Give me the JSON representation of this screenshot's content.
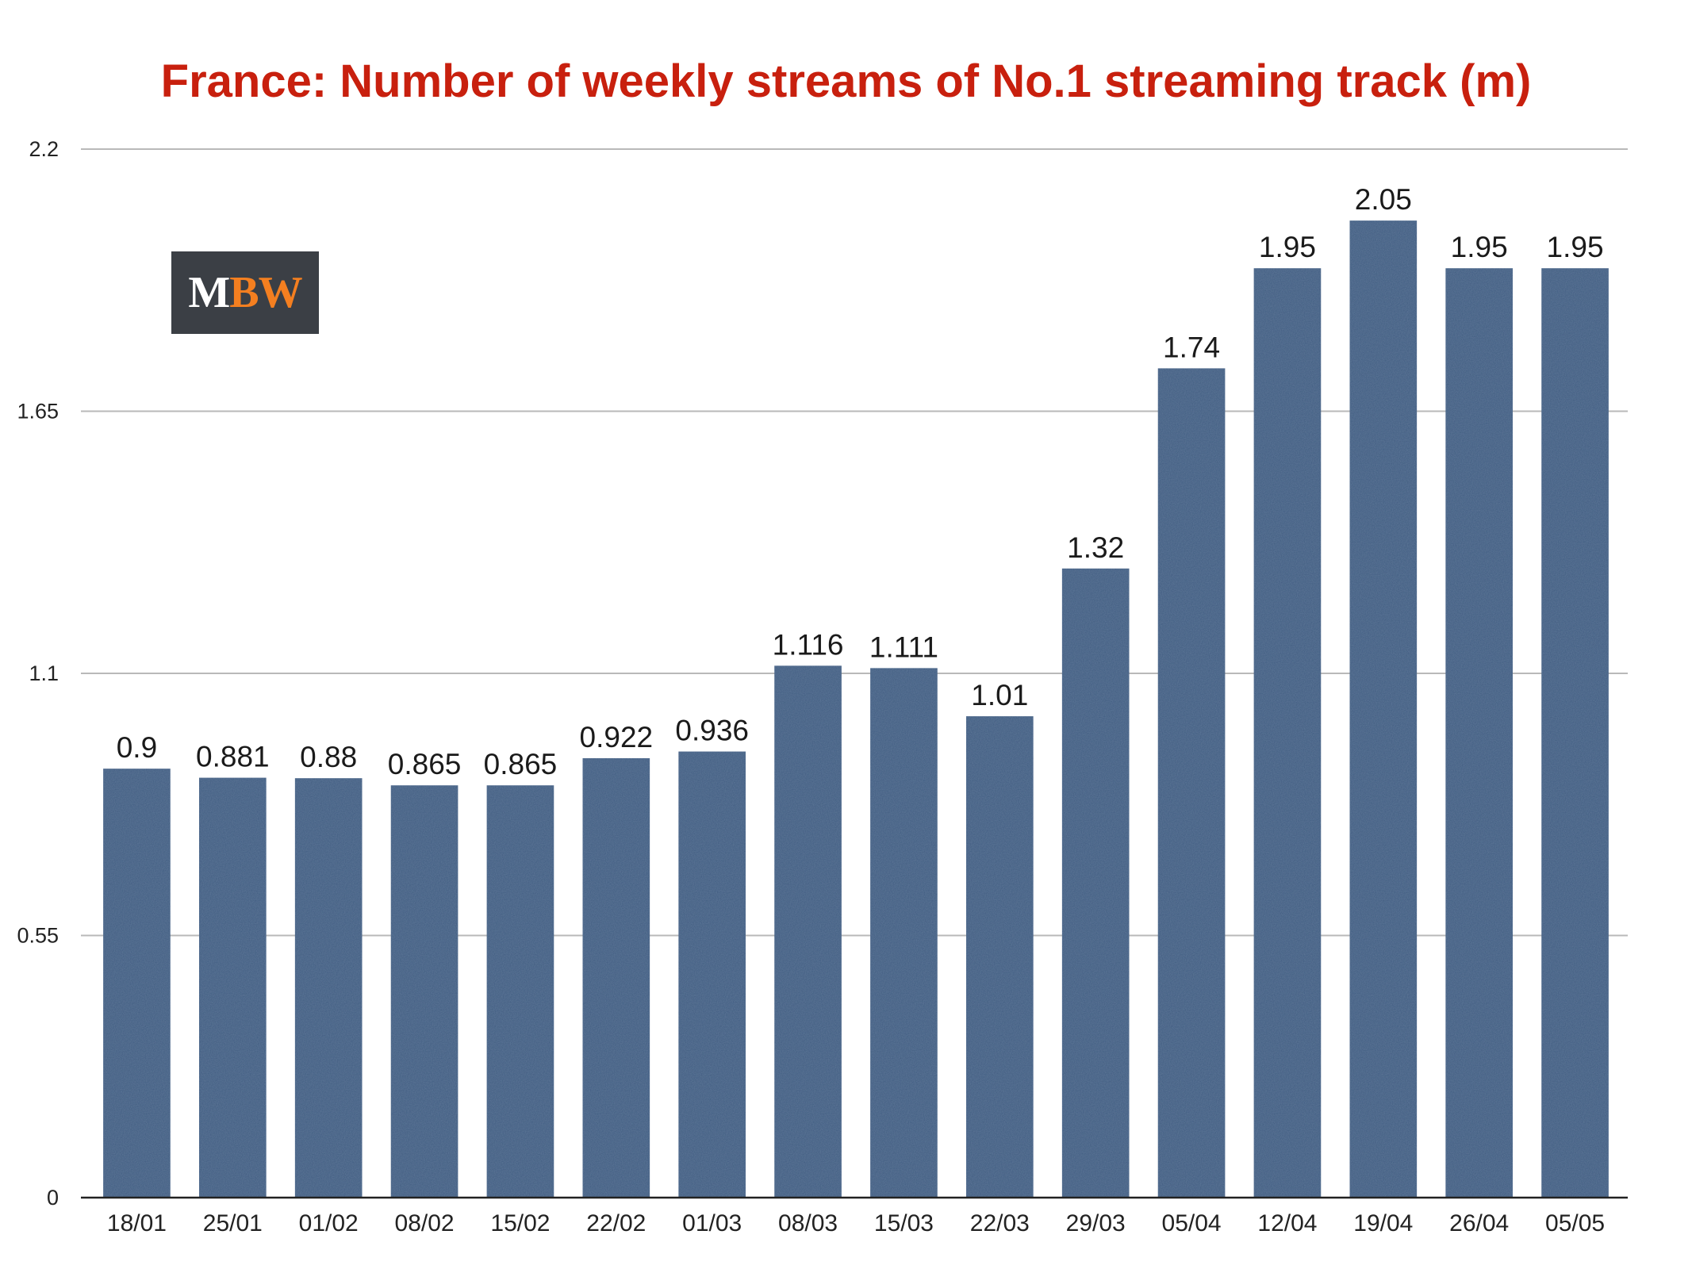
{
  "chart_data": {
    "type": "bar",
    "title": "France: Number of weekly streams of No.1 streaming track (m)",
    "xlabel": "",
    "ylabel": "",
    "ylim": [
      0,
      2.2
    ],
    "yticks": [
      "0",
      "0.55",
      "1.1",
      "1.65",
      "2.2"
    ],
    "grid": true,
    "legend": "none",
    "bar_color": "#3d5a80",
    "title_color": "#c8200e",
    "categories": [
      "18/01",
      "25/01",
      "01/02",
      "08/02",
      "15/02",
      "22/02",
      "01/03",
      "08/03",
      "15/03",
      "22/03",
      "29/03",
      "05/04",
      "12/04",
      "19/04",
      "26/04",
      "05/05"
    ],
    "values": [
      0.9,
      0.881,
      0.88,
      0.865,
      0.865,
      0.922,
      0.936,
      1.116,
      1.111,
      1.01,
      1.32,
      1.74,
      1.95,
      2.05,
      1.95,
      1.95
    ],
    "data_labels": [
      "0.9",
      "0.881",
      "0.88",
      "0.865",
      "0.865",
      "0.922",
      "0.936",
      "1.116",
      "1.111",
      "1.01",
      "1.32",
      "1.74",
      "1.95",
      "2.05",
      "1.95",
      "1.95"
    ]
  },
  "logo": {
    "m": "M",
    "bw": "BW"
  }
}
